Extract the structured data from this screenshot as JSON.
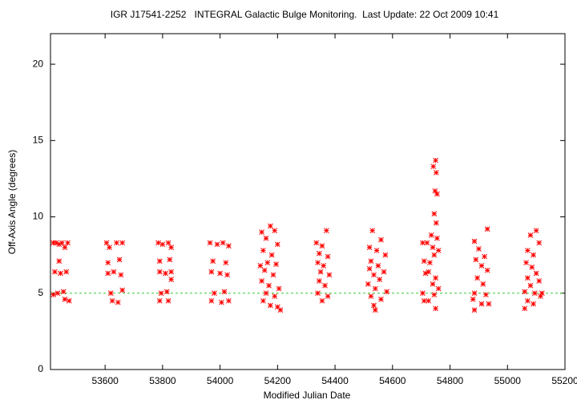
{
  "chart_data": {
    "type": "scatter",
    "title": "IGR J17541-2252   INTEGRAL Galactic Bulge Monitoring.  Last Update: 22 Oct 2009 10:41",
    "x_label": "Modified Julian Date",
    "y_label": "Off-Axis Angle (degrees)",
    "xlim": [
      53410,
      55200
    ],
    "ylim": [
      0,
      22
    ],
    "xticks": [
      53600,
      53800,
      54000,
      54200,
      54400,
      54600,
      54800,
      55000,
      55200
    ],
    "yticks": [
      0,
      5,
      10,
      15,
      20
    ],
    "color": "#ff0000",
    "reference_line": 5,
    "reference_color": "#33cc33",
    "x": [
      53420,
      53430,
      53440,
      53450,
      53460,
      53470,
      53425,
      53445,
      53465,
      53435,
      53455,
      53475,
      53440,
      53460,
      53420,
      53605,
      53615,
      53640,
      53660,
      53650,
      53610,
      53630,
      53655,
      53620,
      53660,
      53625,
      53645,
      53610,
      53785,
      53800,
      53820,
      53830,
      53790,
      53825,
      53790,
      53810,
      53830,
      53795,
      53815,
      53790,
      53820,
      53830,
      53965,
      53990,
      54010,
      54030,
      53975,
      54020,
      53970,
      54000,
      54025,
      53980,
      54015,
      53970,
      54005,
      54030,
      54145,
      54175,
      54190,
      54160,
      54200,
      54150,
      54180,
      54165,
      54195,
      54155,
      54185,
      54145,
      54170,
      54205,
      54160,
      54190,
      54150,
      54175,
      54210,
      54200,
      54140,
      54335,
      54355,
      54370,
      54345,
      54375,
      54340,
      54360,
      54350,
      54380,
      54345,
      54365,
      54340,
      54375,
      54355,
      54530,
      54560,
      54520,
      54545,
      54575,
      54525,
      54550,
      54570,
      54535,
      54555,
      54515,
      54540,
      54580,
      54525,
      54560,
      54535,
      54540,
      54520,
      54705,
      54720,
      54740,
      54750,
      54752,
      54748,
      54755,
      54745,
      54752,
      54735,
      54755,
      54710,
      54730,
      54745,
      54715,
      54725,
      54750,
      54740,
      54760,
      54705,
      54745,
      54710,
      54725,
      54750,
      54760,
      54742,
      54885,
      54930,
      54900,
      54920,
      54890,
      54910,
      54930,
      54895,
      54915,
      54885,
      54925,
      54880,
      54910,
      54935,
      54885,
      55080,
      55100,
      55110,
      55070,
      55090,
      55065,
      55085,
      55100,
      55070,
      55110,
      55080,
      55060,
      55095,
      55120,
      55070,
      55090,
      55060,
      55115
    ],
    "values": [
      8.3,
      8.3,
      8.2,
      8.3,
      8.0,
      8.3,
      6.4,
      6.3,
      6.4,
      5.0,
      5.1,
      4.5,
      7.1,
      4.6,
      4.9,
      8.3,
      8.0,
      8.3,
      8.3,
      7.2,
      6.3,
      6.4,
      6.2,
      5.0,
      5.2,
      4.5,
      4.4,
      7.0,
      8.3,
      8.2,
      8.3,
      8.0,
      7.1,
      7.2,
      6.4,
      6.3,
      6.4,
      5.0,
      5.1,
      4.5,
      4.5,
      5.9,
      8.3,
      8.2,
      8.3,
      8.1,
      7.1,
      7.0,
      6.4,
      6.3,
      6.2,
      5.0,
      5.1,
      4.5,
      4.4,
      4.5,
      9.0,
      9.4,
      9.1,
      8.6,
      8.2,
      7.8,
      7.5,
      7.0,
      6.9,
      6.5,
      6.2,
      5.8,
      5.5,
      5.3,
      5.0,
      4.8,
      4.5,
      4.2,
      3.9,
      4.1,
      6.8,
      8.3,
      8.1,
      9.1,
      7.6,
      7.4,
      7.0,
      6.8,
      6.4,
      6.2,
      5.8,
      5.5,
      5.0,
      4.8,
      4.5,
      9.1,
      8.5,
      8.0,
      7.8,
      7.5,
      7.1,
      6.8,
      6.4,
      6.2,
      5.9,
      5.6,
      5.3,
      5.1,
      4.8,
      4.6,
      4.2,
      3.9,
      6.6,
      8.3,
      8.3,
      8.0,
      13.7,
      12.9,
      11.7,
      11.5,
      10.2,
      9.6,
      8.8,
      8.6,
      7.1,
      7.0,
      7.5,
      6.3,
      6.4,
      6.0,
      5.6,
      5.3,
      5.0,
      4.9,
      4.5,
      4.5,
      4.0,
      7.8,
      13.3,
      8.4,
      9.2,
      7.9,
      7.4,
      7.2,
      6.8,
      6.5,
      6.0,
      5.6,
      5.0,
      4.9,
      4.6,
      4.3,
      4.3,
      3.9,
      8.8,
      9.1,
      8.3,
      7.8,
      7.5,
      7.0,
      6.7,
      6.3,
      6.0,
      5.8,
      5.5,
      5.1,
      5.0,
      5.0,
      4.5,
      4.3,
      4.0,
      4.8
    ]
  }
}
